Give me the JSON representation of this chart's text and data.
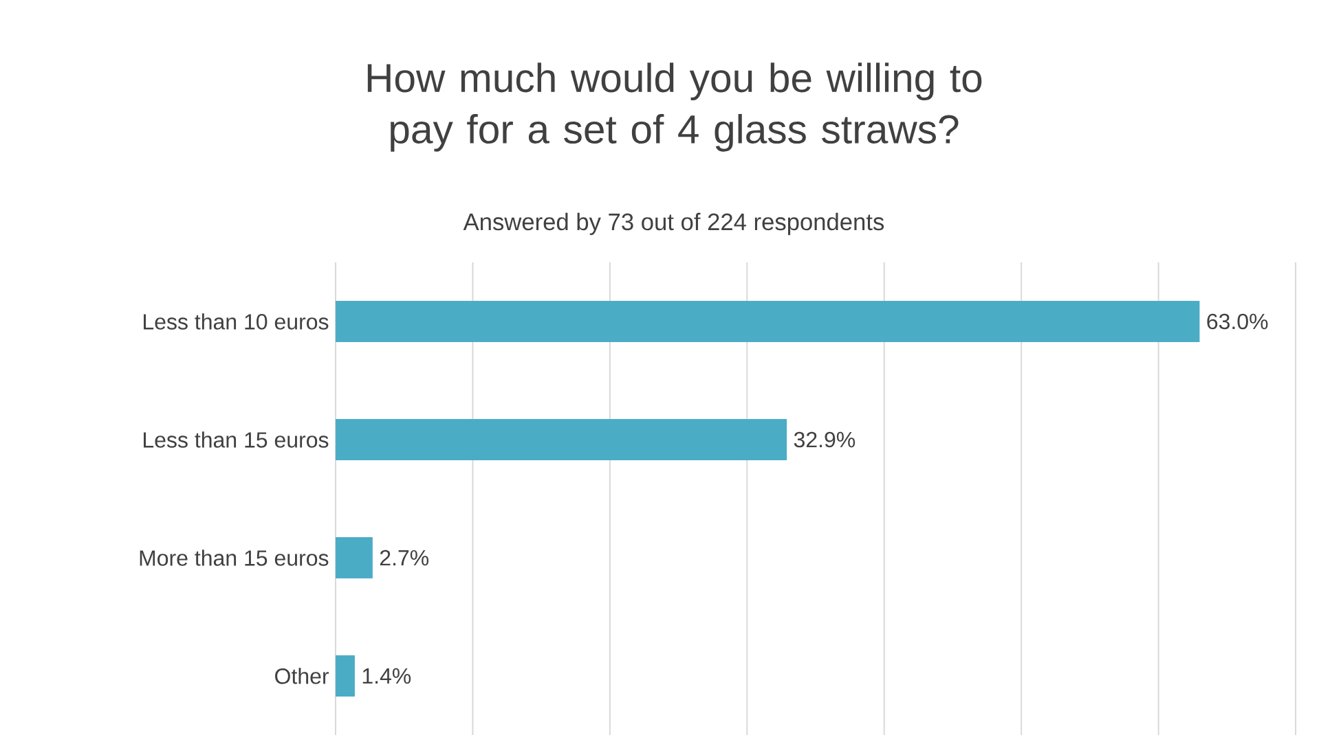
{
  "chart_data": {
    "type": "bar",
    "orientation": "horizontal",
    "title": "How much would you be willing to pay for a set of 4 glass straws?",
    "subtitle": "Answered by 73 out of 224 respondents",
    "categories": [
      "Less than 10 euros",
      "Less than 15 euros",
      "More than 15 euros",
      "Other"
    ],
    "values": [
      63.0,
      32.9,
      2.7,
      1.4
    ],
    "value_labels": [
      "63.0%",
      "32.9%",
      "2.7%",
      "1.4%"
    ],
    "color": "#4bacc6",
    "xlim": [
      0,
      70
    ],
    "xticks": [
      {
        "value": 0,
        "label": null
      },
      {
        "value": 10,
        "label": null
      },
      {
        "value": 20,
        "label": null
      },
      {
        "value": 30,
        "label": null
      },
      {
        "value": 40,
        "label": null
      },
      {
        "value": 50,
        "label": null
      },
      {
        "value": 60,
        "label": null
      },
      {
        "value": 70,
        "label": null
      }
    ],
    "grid": "x",
    "tick_labels": "y"
  }
}
